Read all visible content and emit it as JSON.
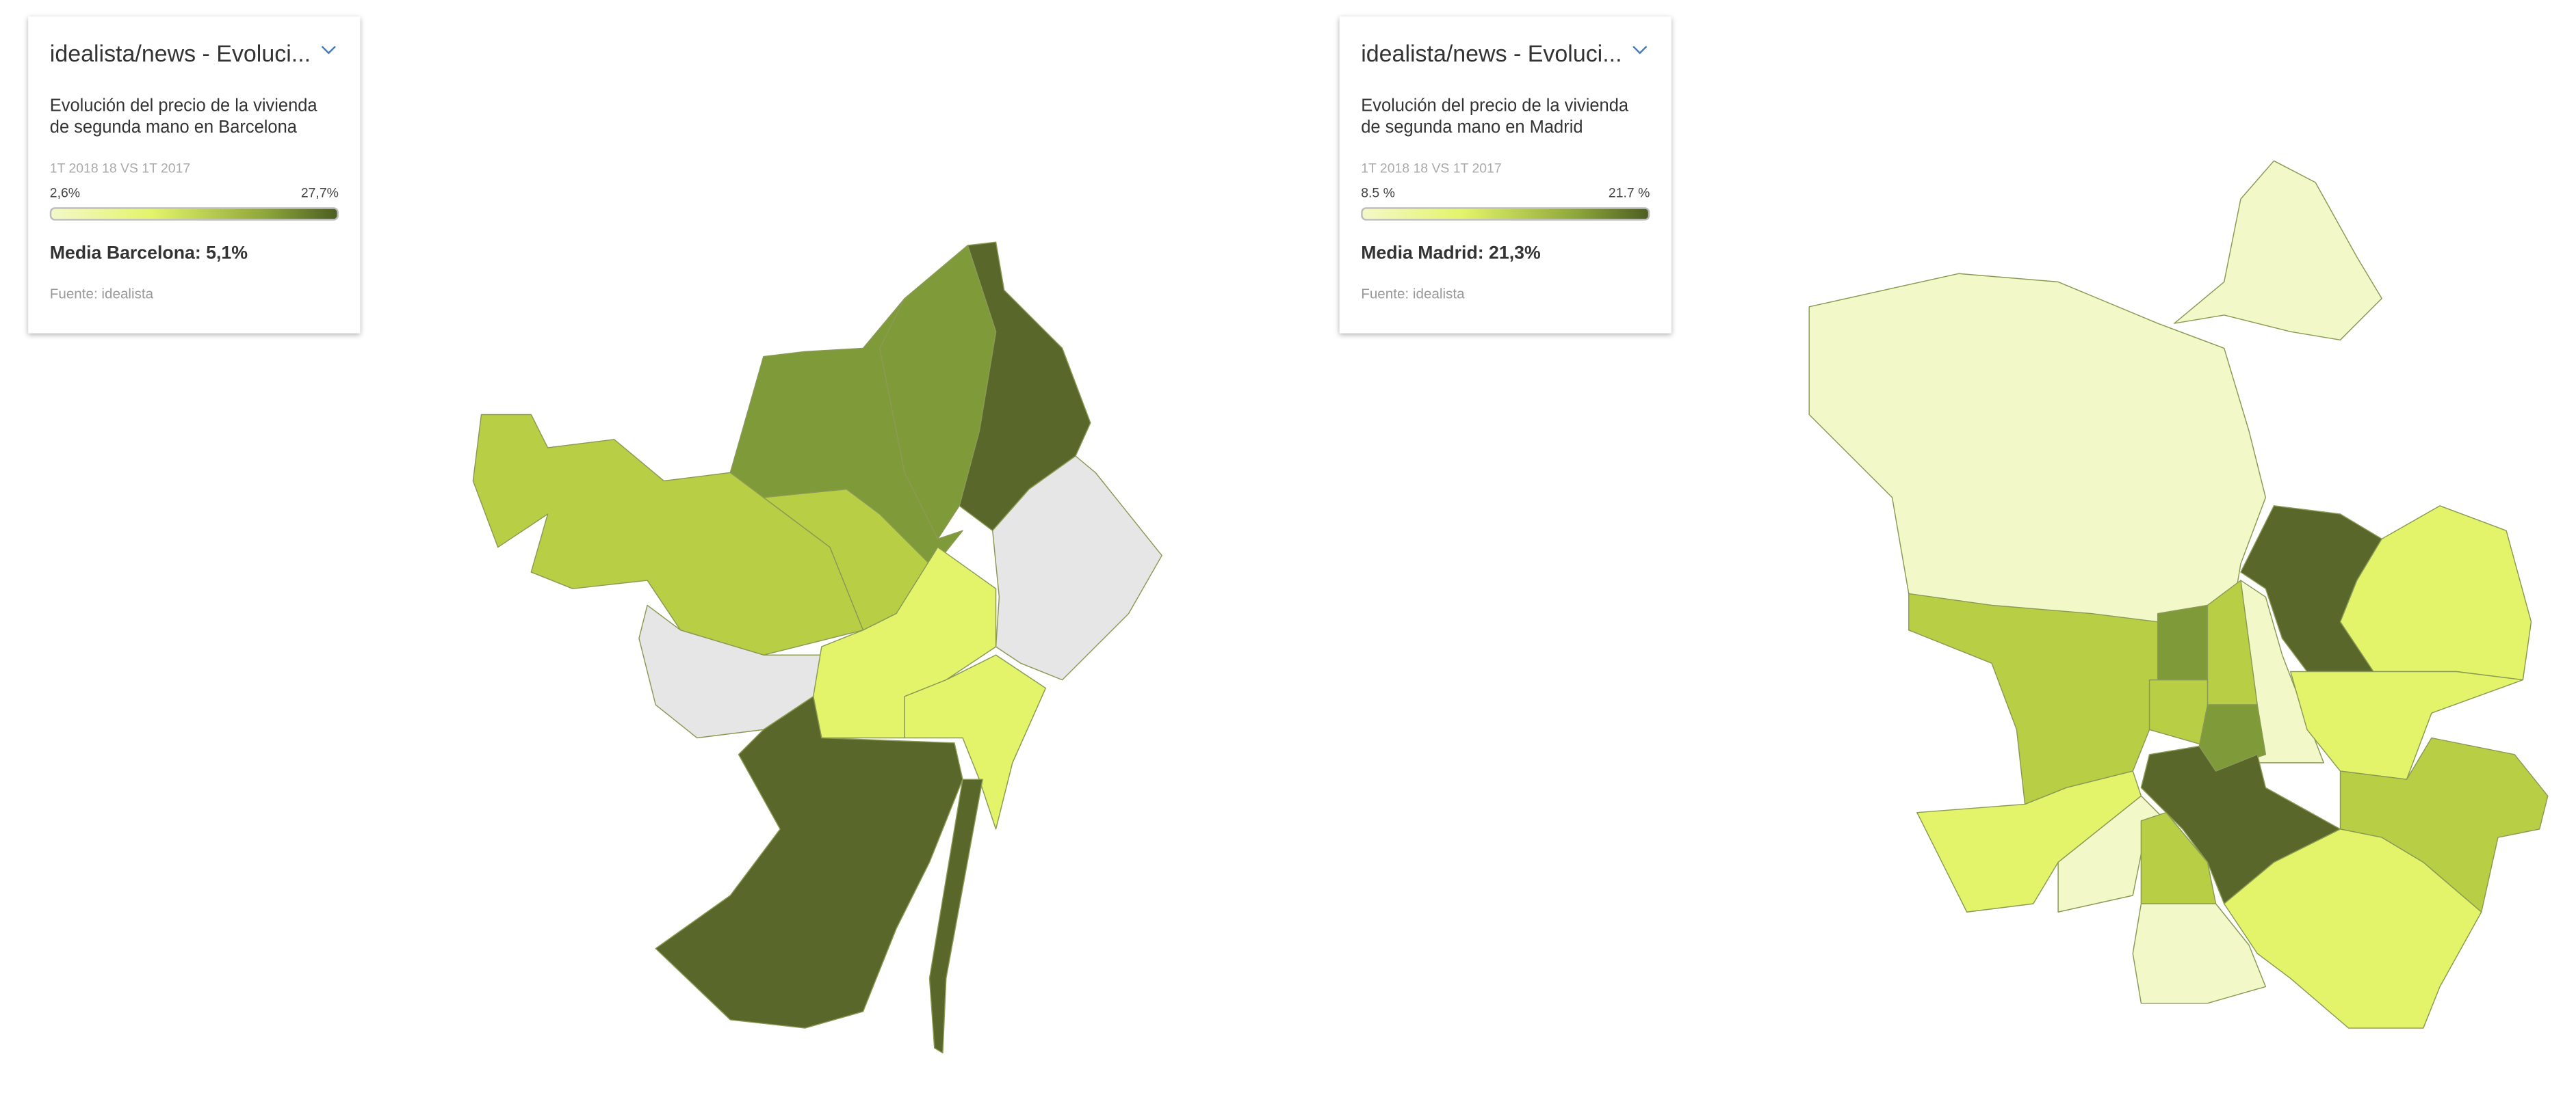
{
  "panels": [
    {
      "widget_title": "idealista/news - Evoluci...",
      "subtitle": "Evolución del precio de la vivienda de segunda mano en Barcelona",
      "period": "1T 2018 18 VS 1T 2017",
      "legend_min": "2,6%",
      "legend_max": "27,7%",
      "average": "Media Barcelona: 5,1%",
      "source": "Fuente: idealista"
    },
    {
      "widget_title": "idealista/news - Evoluci...",
      "subtitle": "Evolución del precio de la vivienda de segunda mano en Madrid",
      "period": "1T 2018 18 VS 1T 2017",
      "legend_min": "8.5 %",
      "legend_max": "21.7 %",
      "average": "Media Madrid: 21,3%",
      "source": "Fuente: idealista"
    }
  ]
}
